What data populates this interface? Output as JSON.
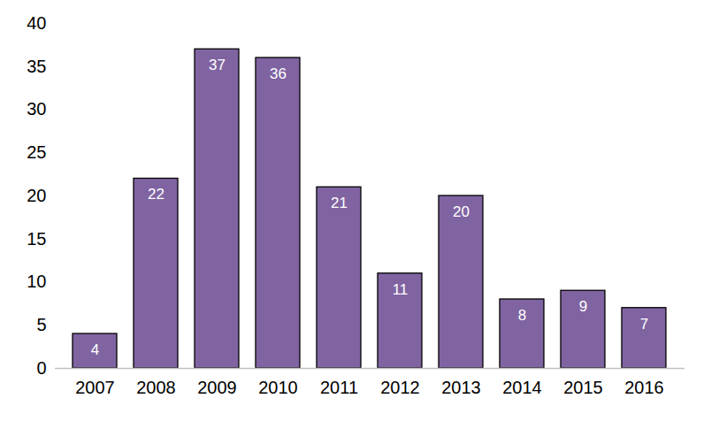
{
  "chart_data": {
    "type": "bar",
    "categories": [
      "2007",
      "2008",
      "2009",
      "2010",
      "2011",
      "2012",
      "2013",
      "2014",
      "2015",
      "2016"
    ],
    "values": [
      4,
      22,
      37,
      36,
      21,
      11,
      20,
      8,
      9,
      7
    ],
    "color": "#8064A2",
    "ylim": [
      0,
      40
    ],
    "yticks": [
      0,
      5,
      10,
      15,
      20,
      25,
      30,
      35,
      40
    ],
    "grid": false,
    "data_labels": true
  }
}
